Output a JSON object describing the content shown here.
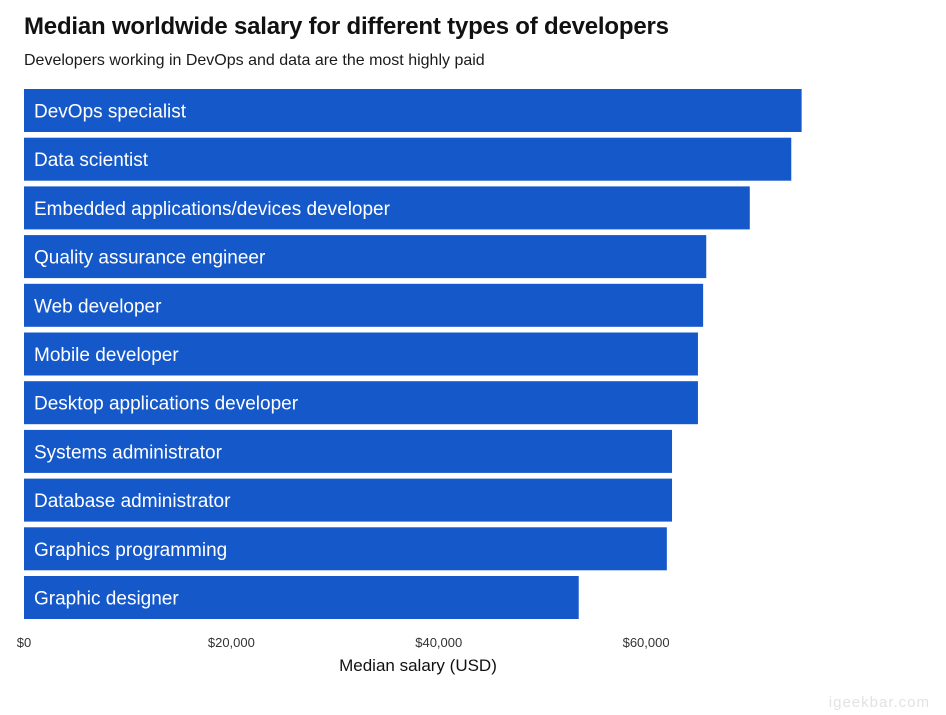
{
  "watermark": "igeekbar.com",
  "colors": {
    "bar": "#1558c9",
    "background": "#ffffff"
  },
  "chart_data": {
    "type": "bar",
    "orientation": "horizontal",
    "title": "Median worldwide salary for different types of developers",
    "subtitle": "Developers working in DevOps and data are the most highly paid",
    "xlabel": "Median salary (USD)",
    "ylabel": "",
    "xlim": [
      0,
      76000
    ],
    "xticks": [
      0,
      20000,
      40000,
      60000
    ],
    "xtick_labels": [
      "$0",
      "$20,000",
      "$40,000",
      "$60,000"
    ],
    "grid": false,
    "categories": [
      "DevOps specialist",
      "Data scientist",
      "Embedded applications/devices developer",
      "Quality assurance engineer",
      "Web developer",
      "Mobile developer",
      "Desktop applications developer",
      "Systems administrator",
      "Database administrator",
      "Graphics programming",
      "Graphic designer"
    ],
    "values": [
      75000,
      74000,
      70000,
      65800,
      65500,
      65000,
      65000,
      62500,
      62500,
      62000,
      53500
    ]
  }
}
